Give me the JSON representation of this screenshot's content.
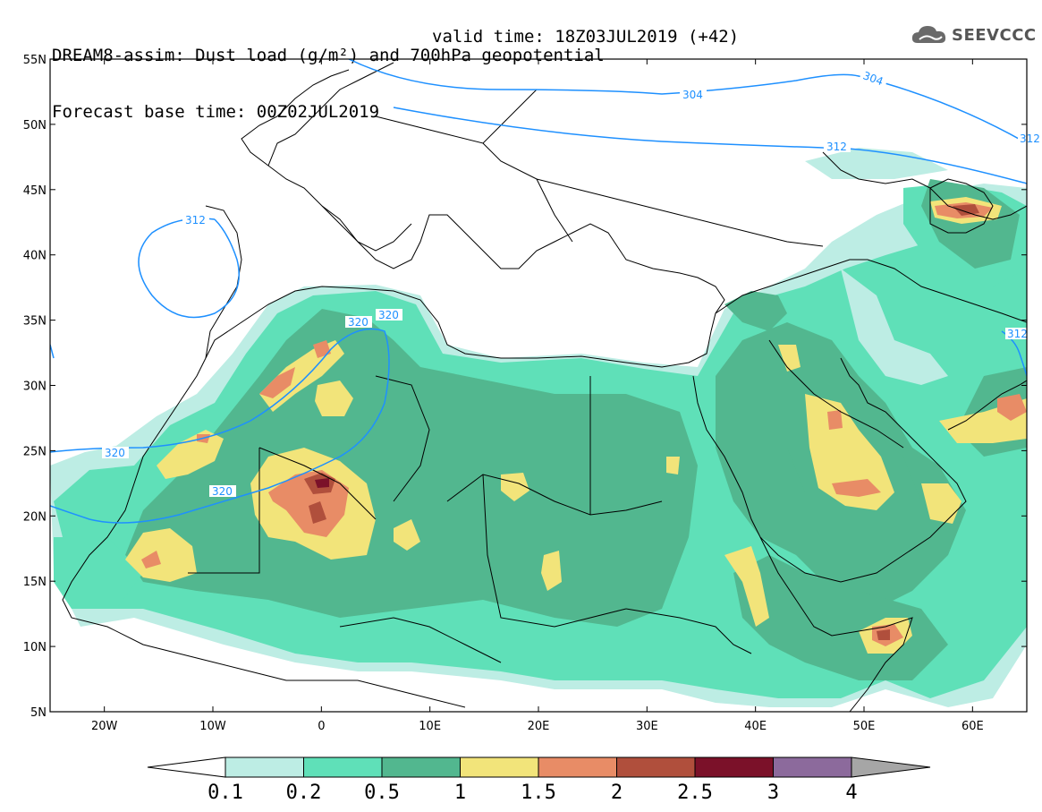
{
  "header": {
    "line1": "DREAM8-assim: Dust load (g/m²) and 700hPa geopotential",
    "line2": "Forecast base time: 00Z02JUL2019",
    "valid": "valid time: 18Z03JUL2019 (+42)"
  },
  "logo": {
    "icon": "cloud-icon",
    "text": "SEEVCCC"
  },
  "axes": {
    "lat_labels": [
      "55N",
      "50N",
      "45N",
      "40N",
      "35N",
      "30N",
      "25N",
      "20N",
      "15N",
      "10N",
      "5N"
    ],
    "lon_labels": [
      "20W",
      "10W",
      "0",
      "10E",
      "20E",
      "30E",
      "40E",
      "50E",
      "60E"
    ],
    "lat_range": [
      5,
      55
    ],
    "lon_range": [
      -25,
      65
    ]
  },
  "contours": {
    "labels": [
      "304",
      "304",
      "312",
      "312",
      "312",
      "312",
      "320",
      "320",
      "320",
      "320"
    ]
  },
  "colorbar": {
    "labels": [
      "0.1",
      "0.2",
      "0.5",
      "1",
      "1.5",
      "2",
      "2.5",
      "3",
      "4"
    ],
    "colors": [
      "#ffffff",
      "#bdede4",
      "#5fe0b8",
      "#52b78f",
      "#f2e47a",
      "#e88c66",
      "#b04f3c",
      "#7b1129",
      "#8c6a9c",
      "#a6a6a6"
    ]
  }
}
